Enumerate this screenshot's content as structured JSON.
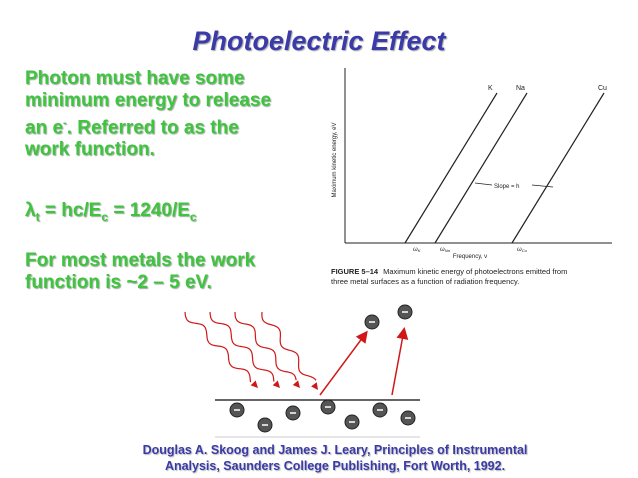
{
  "header": {
    "title": "Photoelectric Effect"
  },
  "text": {
    "para1": [
      "Photon must have some",
      "minimum energy to release",
      "an e",
      "-",
      ".  Referred to as the",
      "work function."
    ],
    "formula": [
      "λ",
      "t",
      " = hc/E",
      "c",
      " = 1240/E",
      "c"
    ],
    "para2": [
      "For most metals the work",
      "function is ~2 – 5 eV."
    ]
  },
  "figure": {
    "line_labels": [
      "K",
      "Na",
      "Cu"
    ],
    "slope_label": "Slope = h",
    "y_axis_label": "Maximum kinetic energy, eV",
    "x_axis_label": "Frequency, ν",
    "threshold_labels": [
      "ω",
      "K",
      "ω",
      "Na",
      "ω",
      "Cu"
    ],
    "caption_number": "FIGURE 5–14",
    "caption_lines": [
      "Maximum kinetic energy of photoelectrons emitted from",
      "three metal surfaces as a function of radiation frequency."
    ]
  },
  "citation": [
    "Douglas A. Skoog and James J. Leary, Principles of Instrumental",
    "Analysis, Saunders College Publishing, Fort Worth, 1992."
  ]
}
